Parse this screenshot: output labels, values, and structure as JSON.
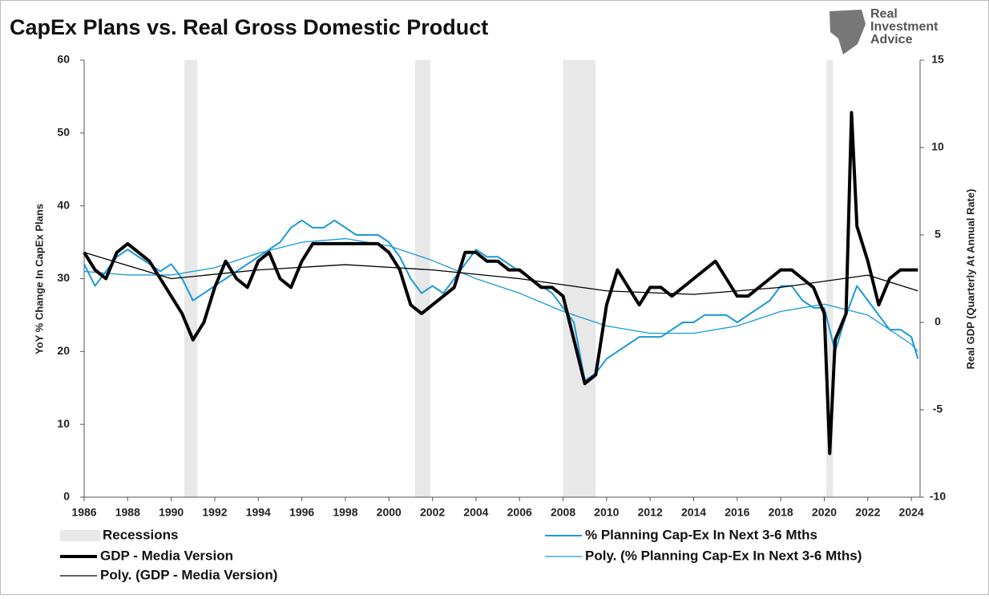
{
  "chart_data": {
    "type": "line",
    "title": "CapEx Plans vs. Real Gross Domestic Product",
    "logo": "Real Investment Advice",
    "y_label": "YoY % Change In CapEx Plans",
    "y2_label": "Real GDP (Quarterly At Annual Rate)",
    "xlim": [
      1986,
      2024.4
    ],
    "xticks": [
      1986,
      1988,
      1990,
      1992,
      1994,
      1996,
      1998,
      2000,
      2002,
      2004,
      2006,
      2008,
      2010,
      2012,
      2014,
      2016,
      2018,
      2020,
      2022,
      2024
    ],
    "ylim": [
      0,
      60
    ],
    "yticks": [
      0,
      10,
      20,
      30,
      40,
      50,
      60
    ],
    "y2lim": [
      -10,
      15
    ],
    "y2ticks": [
      -10,
      -5,
      0,
      5,
      10,
      15
    ],
    "recessions": {
      "name": "Recessions",
      "color": "#e8e8e8",
      "periods": [
        [
          1990.6,
          1991.2
        ],
        [
          2001.2,
          2001.9
        ],
        [
          2008.0,
          2009.5
        ],
        [
          2020.1,
          2020.4
        ]
      ]
    },
    "series": [
      {
        "name": "% Planning Cap-Ex In Next 3-6 Mths",
        "color": "#1a9ad6",
        "width": 2,
        "x": [
          1986,
          1986.5,
          1987,
          1987.5,
          1988,
          1988.5,
          1989,
          1989.5,
          1990,
          1990.5,
          1991,
          1991.5,
          1992,
          1992.5,
          1993,
          1993.5,
          1994,
          1994.5,
          1995,
          1995.5,
          1996,
          1996.5,
          1997,
          1997.5,
          1998,
          1998.5,
          1999,
          1999.5,
          2000,
          2000.5,
          2001,
          2001.5,
          2002,
          2002.5,
          2003,
          2003.5,
          2004,
          2004.5,
          2005,
          2005.5,
          2006,
          2006.5,
          2007,
          2007.5,
          2008,
          2008.5,
          2009,
          2009.5,
          2010,
          2010.5,
          2011,
          2011.5,
          2012,
          2012.5,
          2013,
          2013.5,
          2014,
          2014.5,
          2015,
          2015.5,
          2016,
          2016.5,
          2017,
          2017.5,
          2018,
          2018.5,
          2019,
          2019.5,
          2020,
          2020.5,
          2021,
          2021.5,
          2022,
          2022.5,
          2023,
          2023.5,
          2024,
          2024.3
        ],
        "values": [
          32,
          29,
          31,
          33,
          34,
          33,
          32,
          31,
          32,
          30,
          27,
          28,
          29,
          30,
          31,
          32,
          33,
          34,
          35,
          37,
          38,
          37,
          37,
          38,
          37,
          36,
          36,
          36,
          35,
          33,
          30,
          28,
          29,
          28,
          30,
          32,
          34,
          33,
          33,
          32,
          31,
          30,
          29,
          28,
          26,
          24,
          16,
          17,
          19,
          20,
          21,
          22,
          22,
          22,
          23,
          24,
          24,
          25,
          25,
          25,
          24,
          25,
          26,
          27,
          29,
          29,
          27,
          26,
          26,
          20,
          25,
          29,
          27,
          25,
          23,
          23,
          22,
          19
        ]
      },
      {
        "name": "GDP - Media Version",
        "color": "#000000",
        "width": 4,
        "axis": "y2",
        "x": [
          1986,
          1986.5,
          1987,
          1987.5,
          1988,
          1988.5,
          1989,
          1989.5,
          1990,
          1990.5,
          1991,
          1991.5,
          1992,
          1992.5,
          1993,
          1993.5,
          1994,
          1994.5,
          1995,
          1995.5,
          1996,
          1996.5,
          1997,
          1997.5,
          1998,
          1998.5,
          1999,
          1999.5,
          2000,
          2000.5,
          2001,
          2001.5,
          2002,
          2002.5,
          2003,
          2003.5,
          2004,
          2004.5,
          2005,
          2005.5,
          2006,
          2006.5,
          2007,
          2007.5,
          2008,
          2008.5,
          2009,
          2009.5,
          2010,
          2010.5,
          2011,
          2011.5,
          2012,
          2012.5,
          2013,
          2013.5,
          2014,
          2014.5,
          2015,
          2015.5,
          2016,
          2016.5,
          2017,
          2017.5,
          2018,
          2018.5,
          2019,
          2019.5,
          2020,
          2020.25,
          2020.5,
          2021,
          2021.25,
          2021.5,
          2022,
          2022.5,
          2023,
          2023.5,
          2024,
          2024.3
        ],
        "values": [
          4,
          3,
          2.5,
          4,
          4.5,
          4,
          3.5,
          2.5,
          1.5,
          0.5,
          -1,
          0,
          2,
          3.5,
          2.5,
          2,
          3.5,
          4,
          2.5,
          2,
          3.5,
          4.5,
          4.5,
          4.5,
          4.5,
          4.5,
          4.5,
          4.5,
          4,
          3,
          1,
          0.5,
          1,
          1.5,
          2,
          4,
          4,
          3.5,
          3.5,
          3,
          3,
          2.5,
          2,
          2,
          1.5,
          -1,
          -3.5,
          -3,
          1,
          3,
          2,
          1,
          2,
          2,
          1.5,
          2,
          2.5,
          3,
          3.5,
          2.5,
          1.5,
          1.5,
          2,
          2.5,
          3,
          3,
          2.5,
          2,
          0.5,
          -7.5,
          -1,
          0.5,
          12,
          5.5,
          3.5,
          1,
          2.5,
          3,
          3,
          3
        ]
      },
      {
        "name": "Poly. (% Planning Cap-Ex In Next 3-6 Mths)",
        "color": "#1a9ad6",
        "width": 1.3,
        "x": [
          1986,
          1988,
          1990,
          1992,
          1994,
          1996,
          1998,
          2000,
          2002,
          2004,
          2006,
          2008,
          2010,
          2012,
          2014,
          2016,
          2018,
          2020,
          2022,
          2024,
          2024.3
        ],
        "values": [
          31,
          30.5,
          30.5,
          31.5,
          33.5,
          35,
          35.5,
          34.5,
          32.5,
          30,
          28,
          25.5,
          23.5,
          22.5,
          22.5,
          23.5,
          25.5,
          26.5,
          25,
          21,
          20
        ]
      },
      {
        "name": "Poly. (GDP - Media Version)",
        "color": "#000000",
        "width": 1.3,
        "axis": "y2",
        "x": [
          1986,
          1990,
          1994,
          1998,
          2002,
          2006,
          2010,
          2014,
          2018,
          2022,
          2024.3
        ],
        "values": [
          4,
          2.5,
          3,
          3.3,
          3,
          2.5,
          1.8,
          1.6,
          2,
          2.7,
          1.8
        ]
      }
    ]
  }
}
